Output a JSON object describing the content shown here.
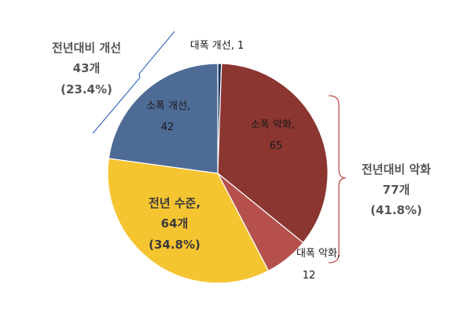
{
  "chart_data": {
    "type": "pie",
    "slices": [
      {
        "label": "대폭 개선",
        "value": 1,
        "color": "#1f3a66"
      },
      {
        "label": "소폭 악화",
        "value": 65,
        "color": "#8b3631"
      },
      {
        "label": "대폭 악화",
        "value": 12,
        "color": "#b5504c"
      },
      {
        "label": "전년 수준",
        "value": 64,
        "color": "#f5c431"
      },
      {
        "label": "소폭 개선",
        "value": 42,
        "color": "#4e6b96"
      }
    ],
    "labels": {
      "s0": {
        "name": "대폭 개선,",
        "value": "1"
      },
      "s1": {
        "name": "소폭 악화,",
        "value": "65"
      },
      "s2": {
        "name": "대폭 악화,",
        "value": "12"
      },
      "s3": {
        "name": "전년 수준,",
        "value": "64개",
        "pct": "(34.8%)"
      },
      "s4": {
        "name": "소폭 개선,",
        "value": "42"
      }
    },
    "groups": {
      "improve": {
        "title": "전년대비 개선",
        "count": "43개",
        "pct": "(23.4%)",
        "bracket_color": "#4472c4"
      },
      "worsen": {
        "title": "전년대비 악화",
        "count": "77개",
        "pct": "(41.8%)",
        "bracket_color": "#c0504d"
      }
    }
  }
}
